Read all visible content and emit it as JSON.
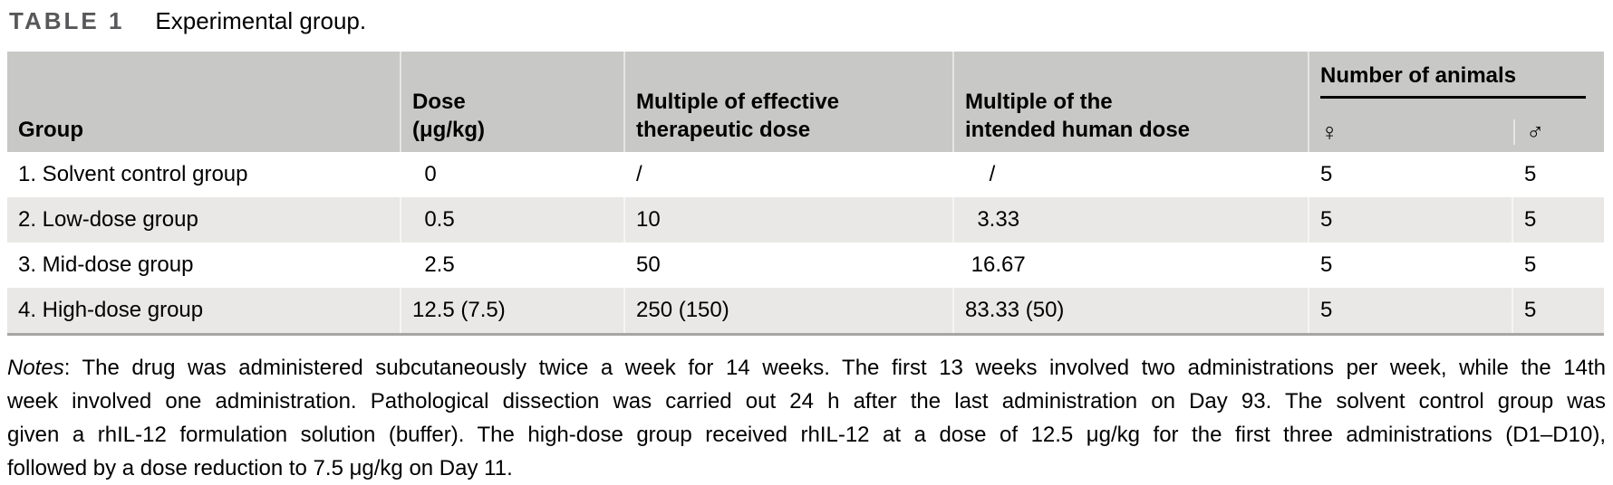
{
  "title": {
    "label": "TABLE 1",
    "caption": "Experimental group."
  },
  "table": {
    "header": {
      "group": "Group",
      "dose_line1": "Dose",
      "dose_line2": "(μg/kg)",
      "mult_eff_line1": "Multiple of effective",
      "mult_eff_line2": "therapeutic dose",
      "mult_hum_line1": "Multiple of the",
      "mult_hum_line2": "intended human dose",
      "animals": "Number of animals",
      "female_symbol": "♀",
      "male_symbol": "♂"
    },
    "rows": [
      {
        "group": "1. Solvent control group",
        "dose": "  0",
        "mult_eff": "/",
        "mult_hum": "    /",
        "female": "5",
        "male": "5"
      },
      {
        "group": "2. Low-dose group",
        "dose": "  0.5",
        "mult_eff": "10",
        "mult_hum": "  3.33",
        "female": "5",
        "male": "5"
      },
      {
        "group": "3. Mid-dose group",
        "dose": "  2.5",
        "mult_eff": "50",
        "mult_hum": " 16.67",
        "female": "5",
        "male": "5"
      },
      {
        "group": "4. High-dose group",
        "dose": "12.5 (7.5)",
        "mult_eff": "250 (150)",
        "mult_hum": "83.33 (50)",
        "female": "5",
        "male": "5"
      }
    ]
  },
  "notes": {
    "label": "Notes",
    "line1_rest": ": The drug was administered subcutaneously twice a week for 14 weeks. The first 13 weeks involved two administrations per week, while the 14th",
    "line2": "week involved one administration. Pathological dissection was carried out 24 h after the last administration on Day 93. The solvent control group was",
    "line3": "given a rhIL-12 formulation solution (buffer). The high-dose group received rhIL-12 at a dose of 12.5 μg/kg for the first three administrations (D1–D10),",
    "line4": "followed by a dose reduction to 7.5 μg/kg on Day 11."
  }
}
